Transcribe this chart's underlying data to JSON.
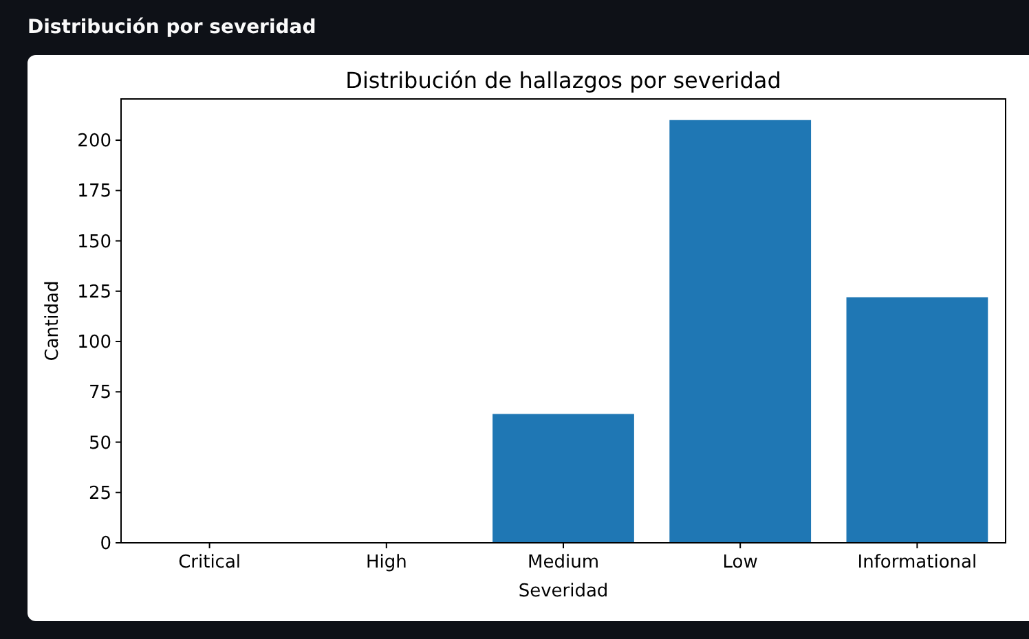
{
  "chart_data": {
    "type": "bar",
    "title": "Distribución de hallazgos por severidad",
    "xlabel": "Severidad",
    "ylabel": "Cantidad",
    "annotations": [
      "Distribución por severidad"
    ],
    "categories": [
      "Critical",
      "High",
      "Medium",
      "Low",
      "Informational"
    ],
    "values": [
      0,
      0,
      64,
      210,
      122
    ],
    "color": "#1f77b4",
    "ylim": [
      0,
      220.5
    ],
    "yticks": [
      0,
      25,
      50,
      75,
      100,
      125,
      150,
      175,
      200
    ]
  }
}
